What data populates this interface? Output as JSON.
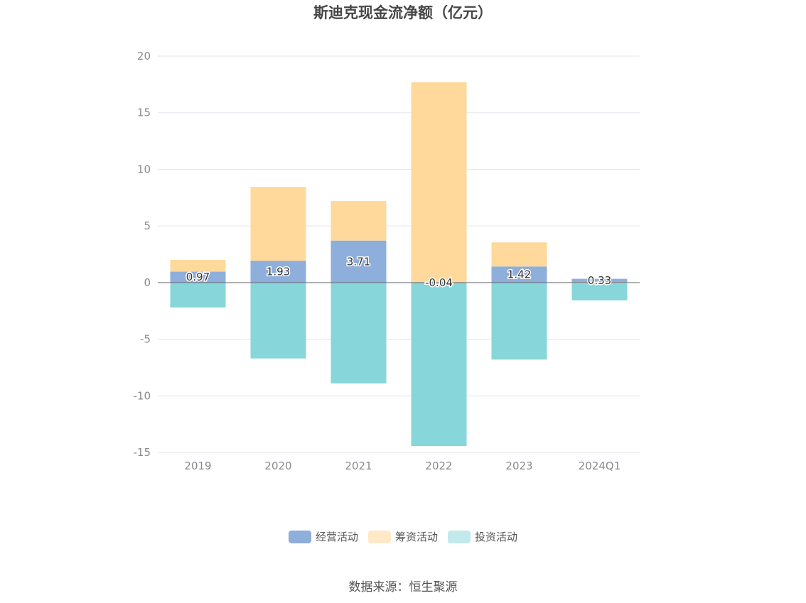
{
  "chart_data": {
    "type": "bar",
    "stacked": true,
    "title": "斯迪克现金流净额（亿元）",
    "categories": [
      "2019",
      "2020",
      "2021",
      "2022",
      "2023",
      "2024Q1"
    ],
    "ylim": [
      -15,
      20
    ],
    "yticks": [
      20,
      15,
      10,
      5,
      0,
      -5,
      -10,
      -15
    ],
    "grid": true,
    "legend_position": "bottom",
    "series": [
      {
        "name": "经营活动",
        "color": "#8eaedb",
        "values": [
          0.97,
          1.93,
          3.71,
          -0.04,
          1.42,
          0.33
        ],
        "labels": [
          "0.97",
          "1.93",
          "3.71",
          "-0.04",
          "1.42",
          "0.33"
        ]
      },
      {
        "name": "筹资活动",
        "color": "#ffd99b",
        "values": [
          1.03,
          6.52,
          3.49,
          17.7,
          2.13,
          -0.07
        ]
      },
      {
        "name": "投资活动",
        "color": "#87d6d9",
        "values": [
          -2.2,
          -6.7,
          -8.9,
          -14.4,
          -6.8,
          -1.5
        ]
      }
    ],
    "legend_colors": [
      "#8eaedb",
      "#ffe9c6",
      "#c2e9ec"
    ]
  },
  "source": "数据来源：恒生聚源"
}
